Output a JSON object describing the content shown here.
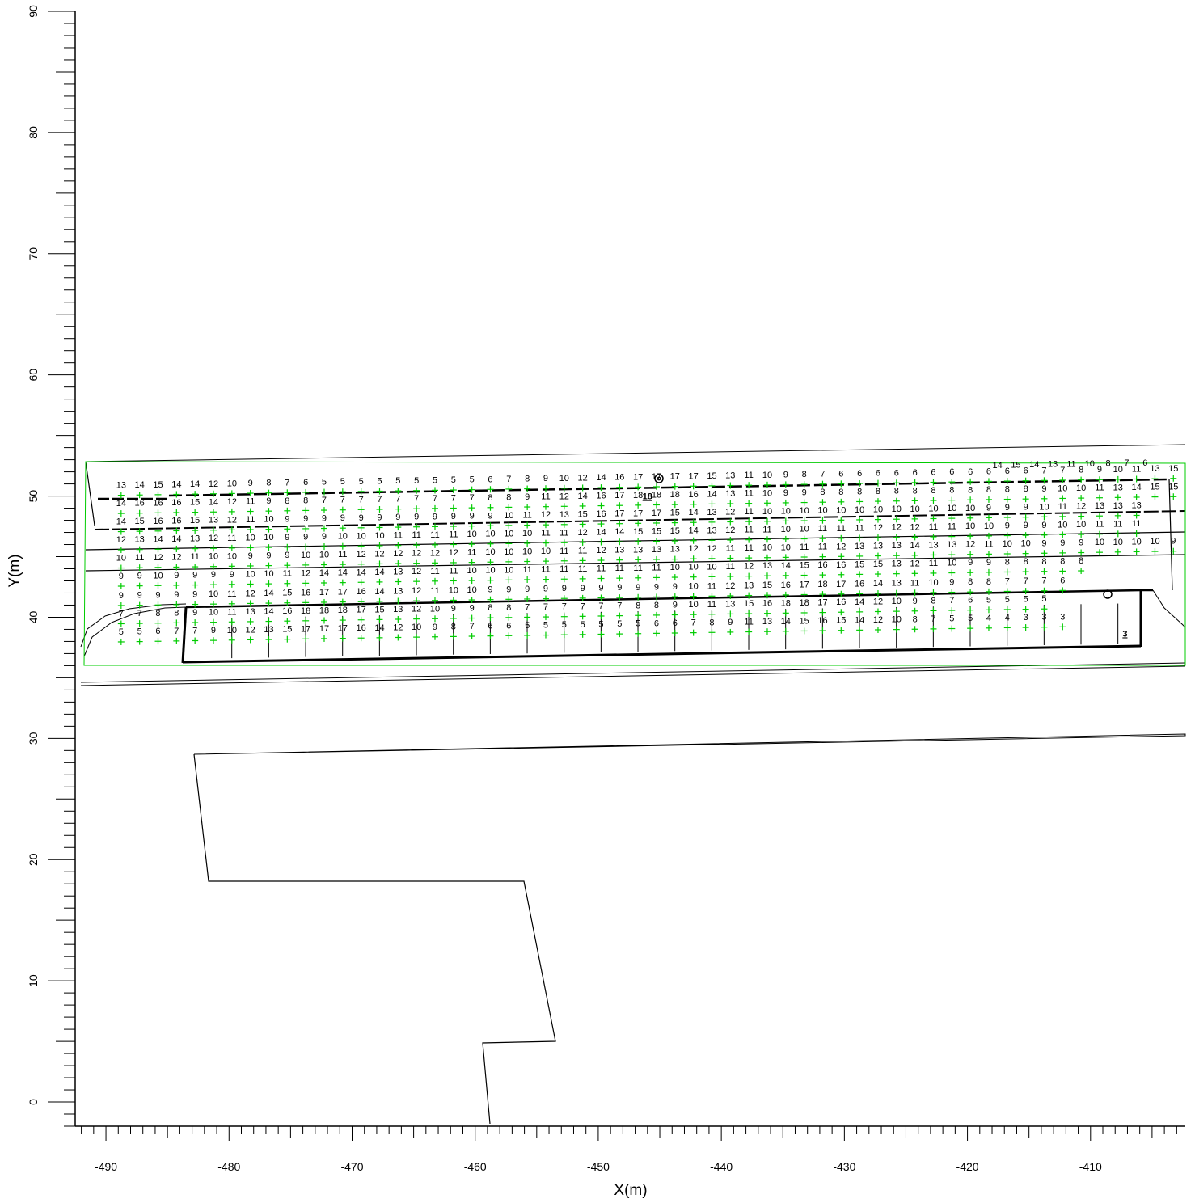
{
  "axes": {
    "xlabel": "X(m)",
    "ylabel": "Y(m)",
    "xlim": [
      -492.5,
      -402.3
    ],
    "ylim": [
      -2,
      90
    ],
    "xticks": [
      "-490",
      "-480",
      "-470",
      "-460",
      "-450",
      "-440",
      "-430",
      "-420",
      "-410"
    ],
    "yticks": [
      "0",
      "10",
      "20",
      "30",
      "40",
      "50",
      "60",
      "70",
      "80",
      "90"
    ]
  },
  "colors": {
    "grid_marker": "#00cc00",
    "boundary": "#00cc00",
    "outline": "#000000",
    "maximum_value": "#0000cc",
    "minimum_value": "#ff0000"
  },
  "rows": [
    {
      "name": "row-1",
      "y": 51.4,
      "labels": [
        "6",
        "7",
        "8",
        "10",
        "11",
        "13",
        "14",
        "15",
        "14"
      ],
      "x_start": -407.8,
      "x_step": -1.5
    },
    {
      "name": "row-2",
      "y": 50.9,
      "labels": [
        "13",
        "14",
        "15",
        "14",
        "14",
        "12",
        "10",
        "9",
        "8",
        "7",
        "6",
        "5",
        "5",
        "5",
        "5",
        "5",
        "5",
        "5",
        "5",
        "5",
        "6",
        "7",
        "8",
        "9",
        "10",
        "12",
        "14",
        "16",
        "17",
        "17",
        "17",
        "17",
        "15",
        "13",
        "11",
        "10",
        "9",
        "8",
        "7",
        "6",
        "6",
        "6",
        "6",
        "6",
        "6",
        "6",
        "6",
        "6",
        "6",
        "6",
        "7",
        "7",
        "8",
        "9",
        "10",
        "11",
        "13",
        "15",
        "16",
        "16"
      ]
    },
    {
      "name": "row-3",
      "y": 49.4,
      "labels": [
        "14",
        "16",
        "16",
        "16",
        "15",
        "14",
        "12",
        "11",
        "9",
        "8",
        "8",
        "7",
        "7",
        "7",
        "7",
        "7",
        "7",
        "7",
        "7",
        "7",
        "8",
        "8",
        "9",
        "11",
        "12",
        "14",
        "16",
        "17",
        "18",
        "18",
        "18",
        "16",
        "14",
        "13",
        "11",
        "10",
        "9",
        "9",
        "8",
        "8",
        "8",
        "8",
        "8",
        "8",
        "8",
        "8",
        "8",
        "8",
        "8",
        "8",
        "9",
        "10",
        "10",
        "11",
        "13",
        "14",
        "15",
        "15",
        "16"
      ]
    },
    {
      "name": "row-4",
      "y": 47.9,
      "labels": [
        "14",
        "15",
        "16",
        "16",
        "15",
        "13",
        "12",
        "11",
        "10",
        "9",
        "9",
        "9",
        "9",
        "9",
        "9",
        "9",
        "9",
        "9",
        "9",
        "9",
        "9",
        "10",
        "11",
        "12",
        "13",
        "15",
        "16",
        "17",
        "17",
        "17",
        "15",
        "14",
        "13",
        "12",
        "11",
        "10",
        "10",
        "10",
        "10",
        "10",
        "10",
        "10",
        "10",
        "10",
        "10",
        "10",
        "10",
        "9",
        "9",
        "9",
        "10",
        "11",
        "12",
        "13",
        "13",
        "13"
      ]
    },
    {
      "name": "row-5",
      "y": 46.4,
      "labels": [
        "12",
        "13",
        "14",
        "14",
        "13",
        "12",
        "11",
        "10",
        "10",
        "9",
        "9",
        "9",
        "10",
        "10",
        "10",
        "11",
        "11",
        "11",
        "11",
        "10",
        "10",
        "10",
        "10",
        "11",
        "11",
        "12",
        "14",
        "14",
        "15",
        "15",
        "15",
        "14",
        "13",
        "12",
        "11",
        "11",
        "10",
        "10",
        "11",
        "11",
        "11",
        "12",
        "12",
        "12",
        "11",
        "11",
        "10",
        "10",
        "9",
        "9",
        "9",
        "10",
        "10",
        "11",
        "11",
        "11"
      ]
    },
    {
      "name": "row-6",
      "y": 44.9,
      "labels": [
        "10",
        "11",
        "12",
        "12",
        "11",
        "10",
        "10",
        "9",
        "9",
        "9",
        "10",
        "10",
        "11",
        "12",
        "12",
        "12",
        "12",
        "12",
        "12",
        "11",
        "10",
        "10",
        "10",
        "10",
        "11",
        "11",
        "12",
        "13",
        "13",
        "13",
        "13",
        "12",
        "12",
        "11",
        "11",
        "10",
        "10",
        "11",
        "11",
        "12",
        "13",
        "13",
        "13",
        "14",
        "13",
        "13",
        "12",
        "11",
        "10",
        "10",
        "9",
        "9",
        "9",
        "10",
        "10",
        "10",
        "10",
        "9"
      ]
    },
    {
      "name": "row-7",
      "y": 43.4,
      "labels": [
        "9",
        "9",
        "10",
        "9",
        "9",
        "9",
        "9",
        "10",
        "10",
        "11",
        "12",
        "14",
        "14",
        "14",
        "14",
        "13",
        "12",
        "11",
        "11",
        "10",
        "10",
        "10",
        "11",
        "11",
        "11",
        "11",
        "11",
        "11",
        "11",
        "11",
        "10",
        "10",
        "10",
        "11",
        "12",
        "13",
        "14",
        "15",
        "16",
        "16",
        "15",
        "15",
        "13",
        "12",
        "11",
        "10",
        "9",
        "9",
        "8",
        "8",
        "8",
        "8",
        "8"
      ]
    },
    {
      "name": "row-8",
      "y": 41.8,
      "labels": [
        "9",
        "9",
        "9",
        "9",
        "9",
        "10",
        "11",
        "12",
        "14",
        "15",
        "16",
        "17",
        "17",
        "16",
        "14",
        "13",
        "12",
        "11",
        "10",
        "10",
        "9",
        "9",
        "9",
        "9",
        "9",
        "9",
        "9",
        "9",
        "9",
        "9",
        "9",
        "10",
        "11",
        "12",
        "13",
        "15",
        "16",
        "17",
        "18",
        "17",
        "16",
        "14",
        "13",
        "11",
        "10",
        "9",
        "8",
        "8",
        "7",
        "7",
        "7",
        "6"
      ]
    },
    {
      "name": "row-9",
      "y": 40.3,
      "labels": [
        "7",
        "7",
        "8",
        "8",
        "9",
        "10",
        "11",
        "13",
        "14",
        "16",
        "18",
        "18",
        "18",
        "17",
        "15",
        "13",
        "12",
        "10",
        "9",
        "9",
        "8",
        "8",
        "7",
        "7",
        "7",
        "7",
        "7",
        "7",
        "8",
        "8",
        "9",
        "10",
        "11",
        "13",
        "15",
        "16",
        "18",
        "18",
        "17",
        "16",
        "14",
        "12",
        "10",
        "9",
        "8",
        "7",
        "6",
        "5",
        "5",
        "5",
        "5"
      ]
    },
    {
      "name": "row-10",
      "y": 38.8,
      "labels": [
        "5",
        "5",
        "6",
        "7",
        "7",
        "9",
        "10",
        "12",
        "13",
        "15",
        "17",
        "17",
        "17",
        "16",
        "14",
        "12",
        "10",
        "9",
        "8",
        "7",
        "6",
        "6",
        "5",
        "5",
        "5",
        "5",
        "5",
        "5",
        "5",
        "6",
        "6",
        "7",
        "8",
        "9",
        "11",
        "13",
        "14",
        "15",
        "16",
        "15",
        "14",
        "12",
        "10",
        "8",
        "7",
        "5",
        "5",
        "4",
        "4",
        "3",
        "3",
        "3"
      ]
    }
  ],
  "markers": {
    "maximum": {
      "label": "18",
      "x": -446.0,
      "y": 49.4
    },
    "minimum": {
      "label": "3",
      "x": -407.2,
      "y": 38.8
    }
  }
}
